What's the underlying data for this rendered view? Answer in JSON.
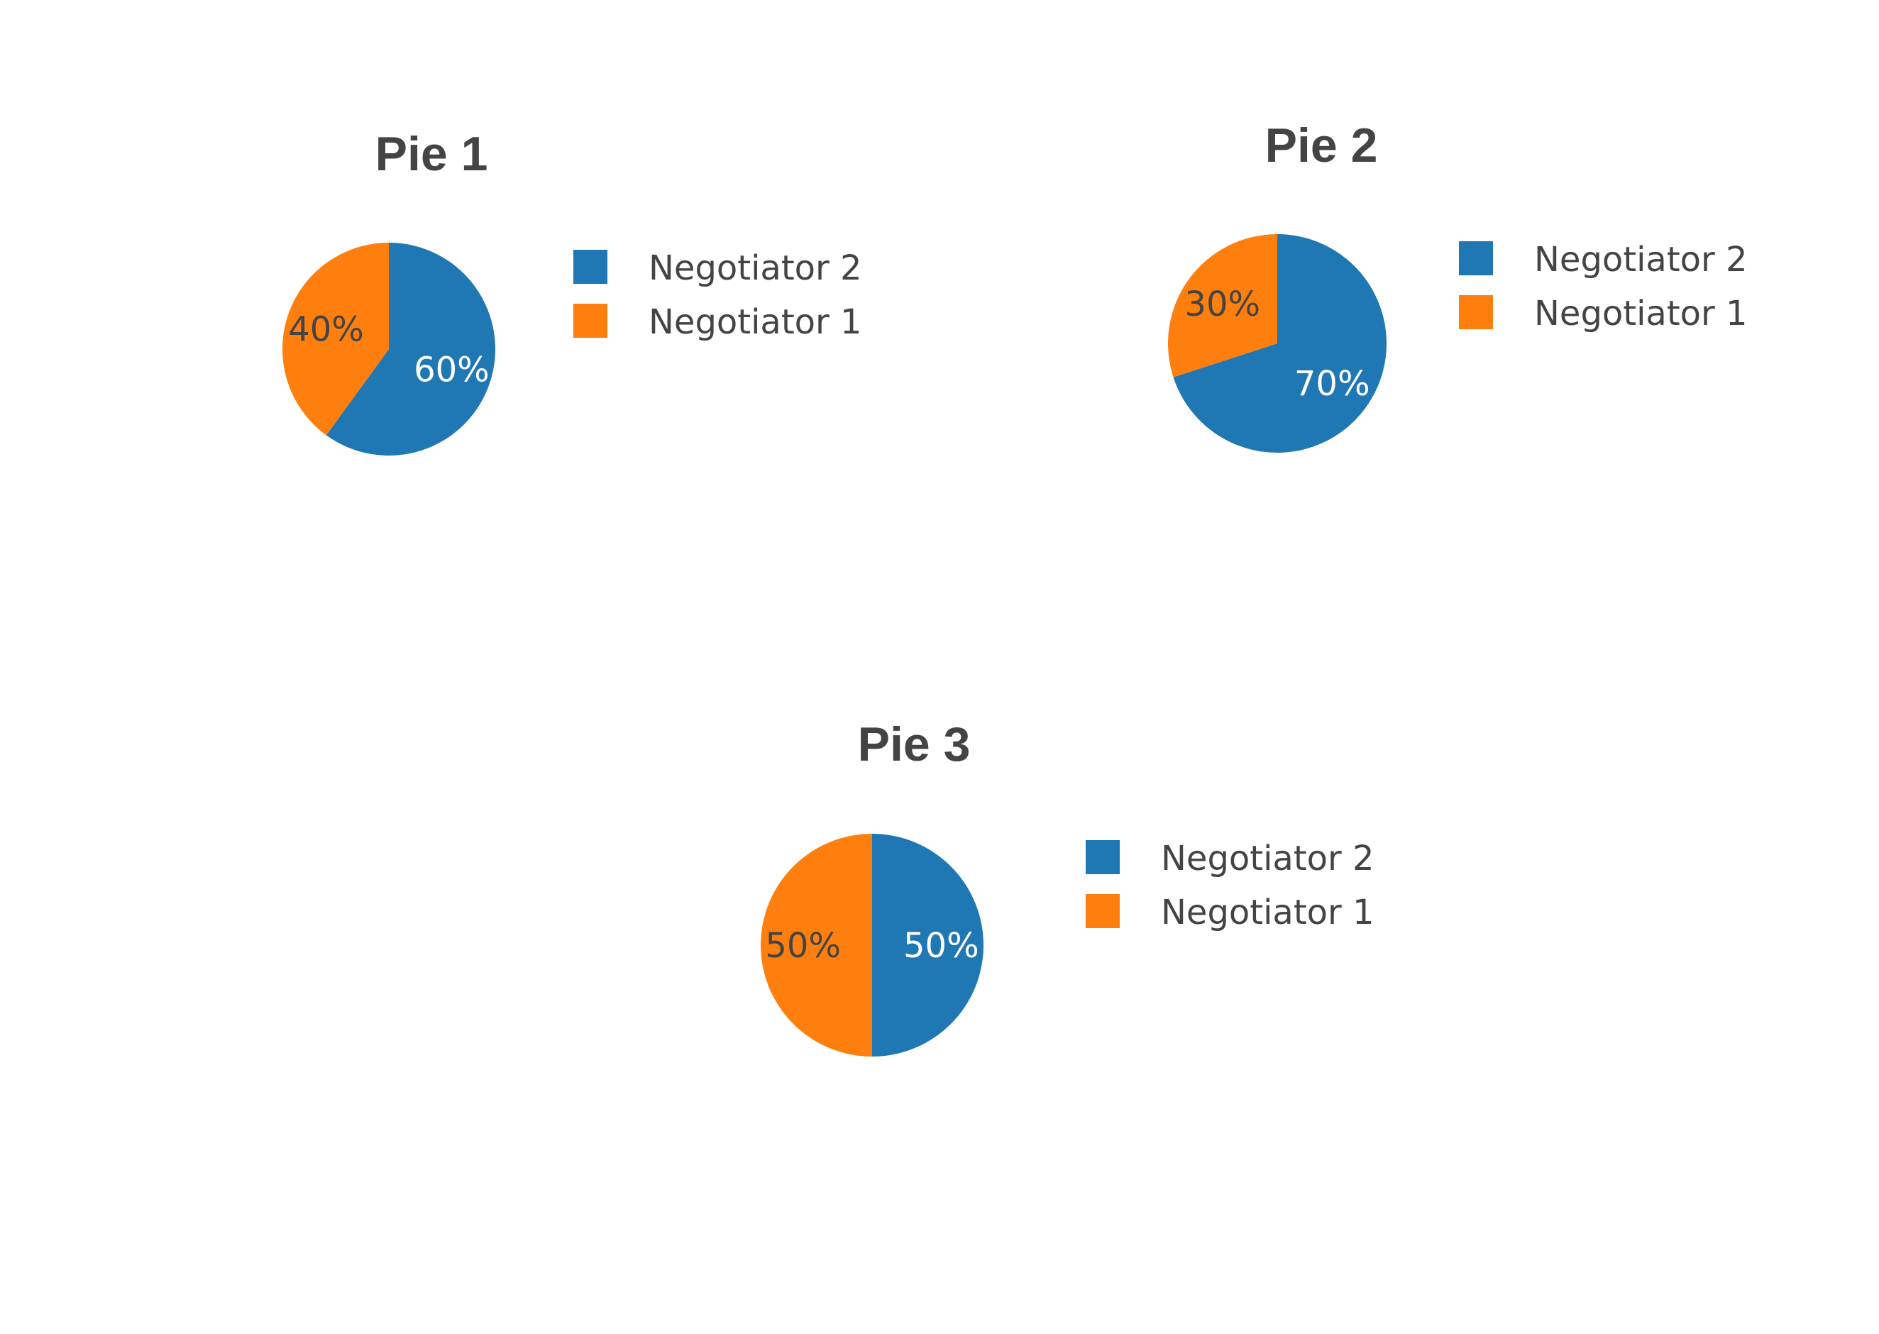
{
  "chart_data": [
    {
      "type": "pie",
      "title": "Pie 1",
      "slices": [
        {
          "label": "Negotiator 2",
          "value": 60,
          "text": "60%",
          "color": "#1f77b4",
          "text_color": "#ffffff"
        },
        {
          "label": "Negotiator 1",
          "value": 40,
          "text": "40%",
          "color": "#ff7f0e",
          "text_color": "#444444"
        }
      ],
      "legend": [
        "Negotiator 2",
        "Negotiator 1"
      ],
      "legend_position": "right"
    },
    {
      "type": "pie",
      "title": "Pie 2",
      "slices": [
        {
          "label": "Negotiator 2",
          "value": 70,
          "text": "70%",
          "color": "#1f77b4",
          "text_color": "#ffffff"
        },
        {
          "label": "Negotiator 1",
          "value": 30,
          "text": "30%",
          "color": "#ff7f0e",
          "text_color": "#444444"
        }
      ],
      "legend": [
        "Negotiator 2",
        "Negotiator 1"
      ],
      "legend_position": "right"
    },
    {
      "type": "pie",
      "title": "Pie 3",
      "slices": [
        {
          "label": "Negotiator 2",
          "value": 50,
          "text": "50%",
          "color": "#1f77b4",
          "text_color": "#ffffff"
        },
        {
          "label": "Negotiator 1",
          "value": 50,
          "text": "50%",
          "color": "#ff7f0e",
          "text_color": "#444444"
        }
      ],
      "legend": [
        "Negotiator 2",
        "Negotiator 1"
      ],
      "legend_position": "right"
    }
  ]
}
